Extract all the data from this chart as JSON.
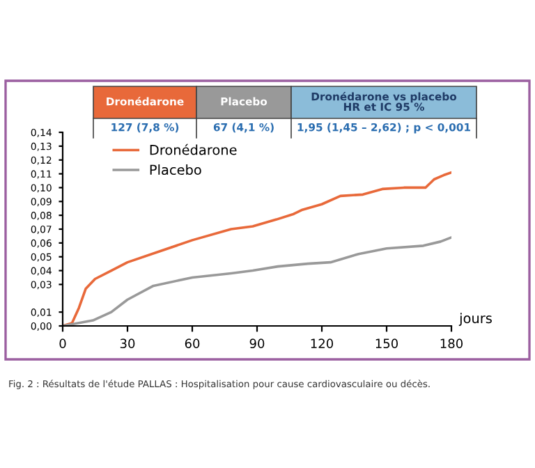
{
  "chart_data": {
    "type": "line",
    "x": [
      0,
      4.3,
      7.5,
      10.7,
      15,
      22.5,
      30,
      45,
      60,
      78,
      88,
      99,
      107,
      111,
      120,
      128.6,
      139,
      148,
      158,
      168,
      172,
      176.4,
      180
    ],
    "series": [
      {
        "name": "Dronédarone",
        "color": "#e8693a",
        "values": [
          0,
          0.002,
          0.013,
          0.027,
          0.034,
          0.04,
          0.046,
          0.054,
          0.062,
          0.07,
          0.072,
          0.077,
          0.081,
          0.084,
          0.088,
          0.094,
          0.095,
          0.099,
          0.1,
          0.1,
          0.106,
          0.109,
          0.111
        ]
      },
      {
        "name": "Placebo",
        "color": "#999999",
        "x": [
          0,
          14,
          22.5,
          30,
          42,
          60,
          78,
          88,
          99.6,
          113.6,
          124,
          137,
          150,
          167,
          175,
          180
        ],
        "values": [
          0,
          0.004,
          0.01,
          0.019,
          0.029,
          0.035,
          0.038,
          0.04,
          0.043,
          0.045,
          0.046,
          0.052,
          0.056,
          0.058,
          0.061,
          0.064
        ]
      }
    ],
    "xlim": [
      0,
      180
    ],
    "xticks": [
      0,
      30,
      60,
      90,
      120,
      150,
      180
    ],
    "ylim": [
      0,
      0.14
    ],
    "yticks": [
      {
        "value": 0,
        "label": "0,00"
      },
      {
        "value": 0.01,
        "label": "0,01"
      },
      {
        "value": 0.03,
        "label": "0,03"
      },
      {
        "value": 0.04,
        "label": "0,04"
      },
      {
        "value": 0.05,
        "label": "0,05"
      },
      {
        "value": 0.06,
        "label": "0,06"
      },
      {
        "value": 0.07,
        "label": "0,07"
      },
      {
        "value": 0.08,
        "label": "0,08"
      },
      {
        "value": 0.09,
        "label": "0,09"
      },
      {
        "value": 0.1,
        "label": "0,10"
      },
      {
        "value": 0.11,
        "label": "0,11"
      },
      {
        "value": 0.12,
        "label": "0,12"
      },
      {
        "value": 0.13,
        "label": "0,13"
      },
      {
        "value": 0.14,
        "label": "0,14"
      }
    ],
    "xlabel": "jours",
    "legend": "top left",
    "grid": false,
    "marker": "none",
    "line_style": "solid",
    "annotations": [
      "Dronédarone",
      "Placebo",
      "Dronédarone vs placebo\nHR et IC 95 %",
      "127 (7,8 %)",
      "67 (4,1 %)",
      "1,95 (1,45 – 2,62) ; p < 0,001",
      "Fig. 2 : Résultats de l'étude PALLAS : Hospitalisation pour cause cardiovasculaire ou décès."
    ]
  }
}
